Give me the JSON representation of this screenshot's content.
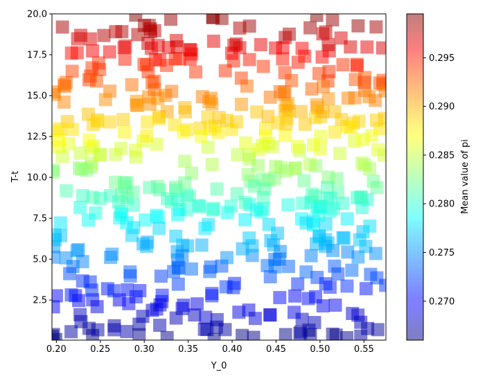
{
  "chart_data": {
    "type": "scatter",
    "marker": "square",
    "xlabel": "Y_0",
    "ylabel": "T-t",
    "xlim": [
      0.195,
      0.575
    ],
    "ylim": [
      0.05,
      20.0
    ],
    "xticks": [
      "0.20",
      "0.25",
      "0.30",
      "0.35",
      "0.40",
      "0.45",
      "0.50",
      "0.55"
    ],
    "xtick_values": [
      0.2,
      0.25,
      0.3,
      0.35,
      0.4,
      0.45,
      0.5,
      0.55
    ],
    "yticks": [
      "2.5",
      "5.0",
      "7.5",
      "10.0",
      "12.5",
      "15.0",
      "17.5",
      "20.0"
    ],
    "ytick_values": [
      2.5,
      5.0,
      7.5,
      10.0,
      12.5,
      15.0,
      17.5,
      20.0
    ],
    "grid": false,
    "colormap": "jet",
    "marker_alpha": 0.5,
    "colorbar": {
      "label": "Mean value of pi",
      "range": [
        0.266,
        0.2995
      ],
      "ticks": [
        "0.270",
        "0.275",
        "0.280",
        "0.285",
        "0.290",
        "0.295"
      ],
      "tick_values": [
        0.27,
        0.275,
        0.28,
        0.285,
        0.29,
        0.295
      ]
    },
    "color_trend": "marker color increases monotonically with T-t: about 0.266 at T-t near 0 up to about 0.2995 at T-t = 20",
    "x_sample_range": [
      0.195,
      0.575
    ],
    "y_sample_range": [
      0.05,
      20.0
    ],
    "point_count": 520
  }
}
